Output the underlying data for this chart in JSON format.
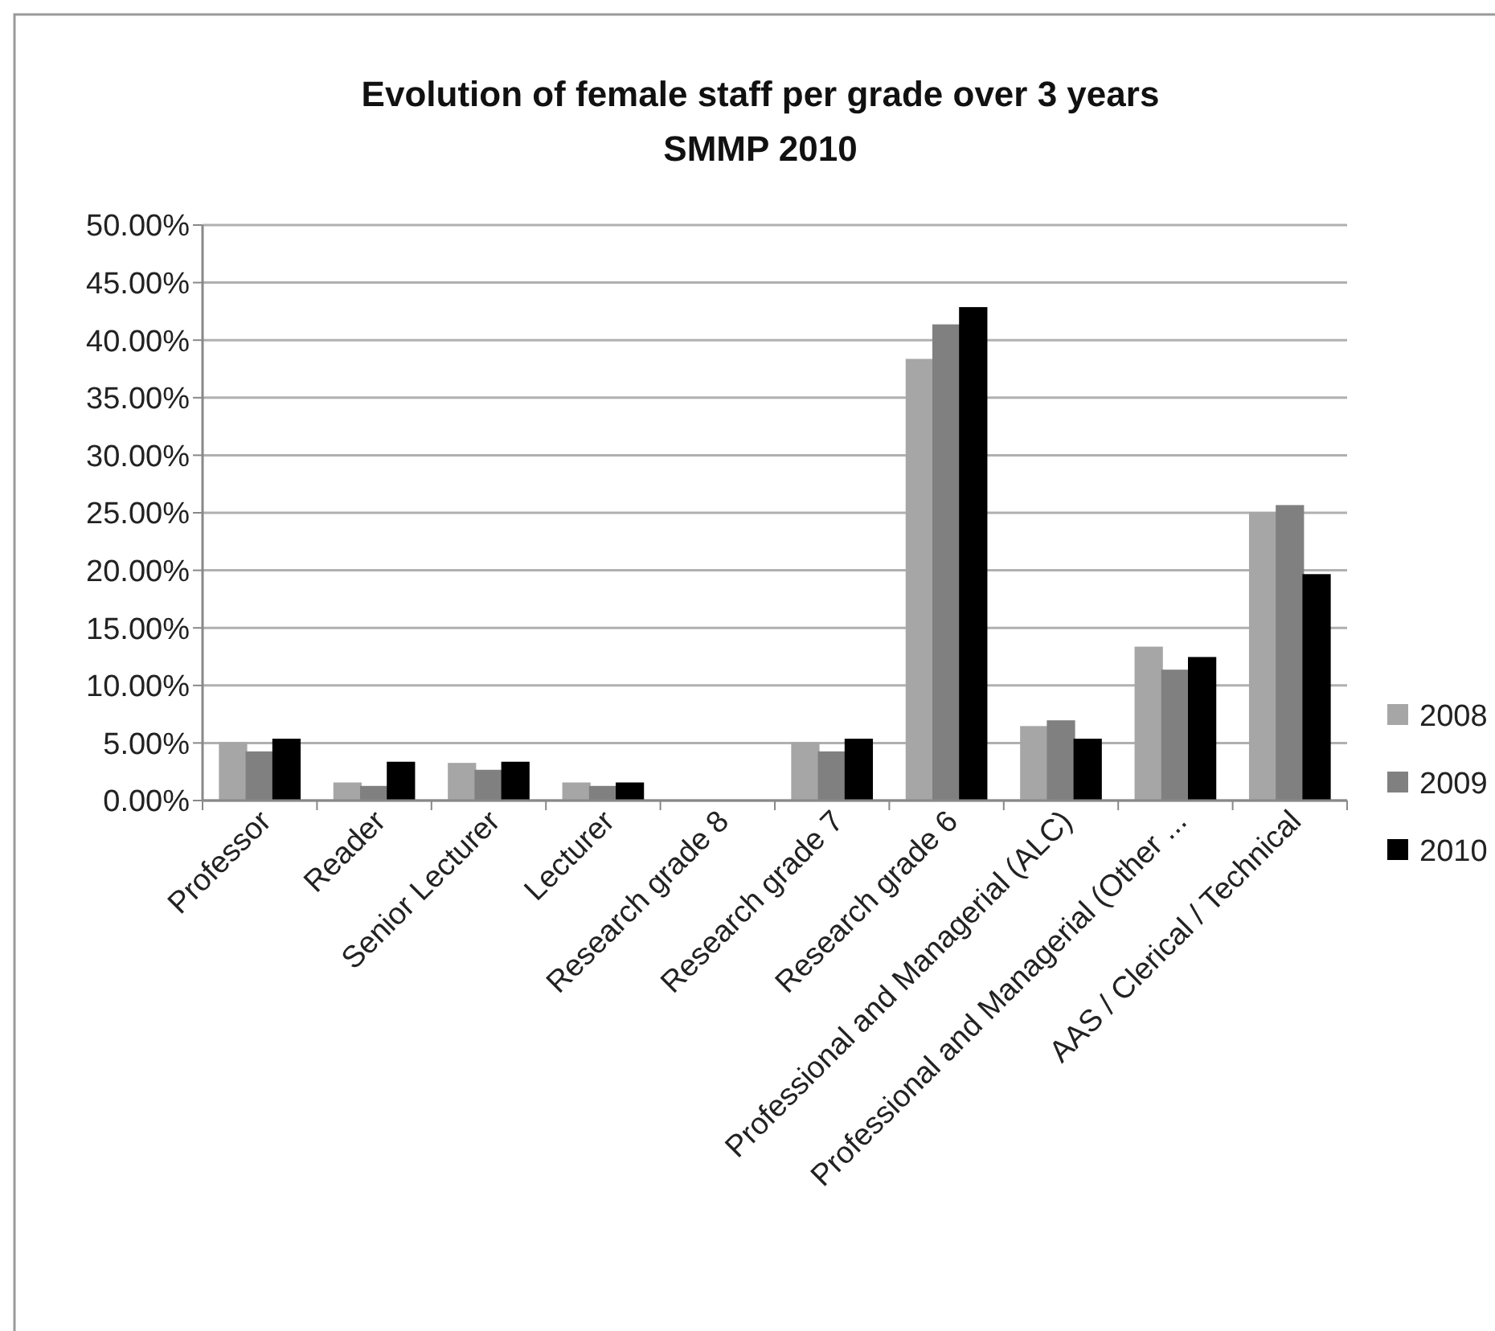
{
  "chart_data": {
    "type": "bar",
    "title": "Evolution of female staff per grade over 3 years",
    "subtitle": "SMMP 2010",
    "categories": [
      "Professor",
      "Reader",
      "Senior Lecturer",
      "Lecturer",
      "Research grade 8",
      "Research grade 7",
      "Research grade 6",
      "Professional and Managerial (ALC)",
      "Professional and Managerial (Other ...",
      "AAS / Clerical / Technical"
    ],
    "series": [
      {
        "name": "2008",
        "color": "#a6a6a6",
        "values": [
          5.0,
          1.5,
          3.2,
          1.5,
          0,
          5.0,
          38.3,
          6.4,
          13.3,
          25.0
        ]
      },
      {
        "name": "2009",
        "color": "#808080",
        "values": [
          4.2,
          1.2,
          2.6,
          1.2,
          0,
          4.2,
          41.3,
          6.9,
          11.3,
          25.6
        ]
      },
      {
        "name": "2010",
        "color": "#000000",
        "values": [
          5.3,
          3.3,
          3.3,
          1.5,
          0,
          5.3,
          42.8,
          5.3,
          12.4,
          19.6
        ]
      }
    ],
    "ylim": [
      0,
      50
    ],
    "yticks": [
      {
        "value": 0,
        "label": "0.00%"
      },
      {
        "value": 5,
        "label": "5.00%"
      },
      {
        "value": 10,
        "label": "10.00%"
      },
      {
        "value": 15,
        "label": "15.00%"
      },
      {
        "value": 20,
        "label": "20.00%"
      },
      {
        "value": 25,
        "label": "25.00%"
      },
      {
        "value": 30,
        "label": "30.00%"
      },
      {
        "value": 35,
        "label": "35.00%"
      },
      {
        "value": 40,
        "label": "40.00%"
      },
      {
        "value": 45,
        "label": "45.00%"
      },
      {
        "value": 50,
        "label": "50.00%"
      }
    ],
    "grid": "y",
    "legend": "right"
  }
}
